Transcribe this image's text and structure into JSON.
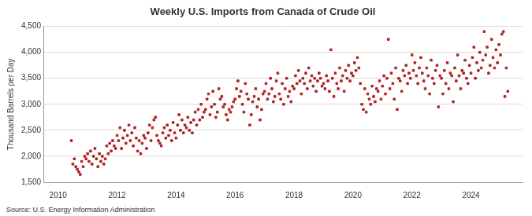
{
  "chart_data": {
    "type": "scatter",
    "title": "Weekly U.S. Imports from Canada of Crude Oil",
    "y_label": "Thousand Barrels per Day",
    "source": "Source: U.S. Energy Information Administration",
    "color": "#b22222",
    "marker": "square",
    "grid": true,
    "xlim": [
      2009.5,
      2025.75
    ],
    "xticks": [
      2010,
      2012,
      2014,
      2016,
      2018,
      2020,
      2022,
      2024
    ],
    "ylim": [
      1500,
      4500
    ],
    "yticks": [
      {
        "value": 1500,
        "label": "1,500"
      },
      {
        "value": 2000,
        "label": "2,000"
      },
      {
        "value": 2500,
        "label": "2,500"
      },
      {
        "value": 3000,
        "label": "3,000"
      },
      {
        "value": 3500,
        "label": "3,500"
      },
      {
        "value": 4000,
        "label": "4,000"
      },
      {
        "value": 4500,
        "label": "4,500"
      }
    ],
    "x": [
      2010.45,
      2010.5,
      2010.55,
      2010.6,
      2010.65,
      2010.7,
      2010.75,
      2010.8,
      2010.85,
      2010.9,
      2010.95,
      2011.0,
      2011.05,
      2011.1,
      2011.15,
      2011.2,
      2011.25,
      2011.3,
      2011.35,
      2011.4,
      2011.45,
      2011.5,
      2011.55,
      2011.6,
      2011.65,
      2011.7,
      2011.75,
      2011.8,
      2011.85,
      2011.9,
      2011.95,
      2012.0,
      2012.05,
      2012.1,
      2012.15,
      2012.2,
      2012.25,
      2012.3,
      2012.35,
      2012.4,
      2012.45,
      2012.5,
      2012.55,
      2012.6,
      2012.65,
      2012.7,
      2012.75,
      2012.8,
      2012.85,
      2012.9,
      2012.95,
      2013.0,
      2013.05,
      2013.1,
      2013.15,
      2013.2,
      2013.25,
      2013.3,
      2013.35,
      2013.4,
      2013.45,
      2013.5,
      2013.55,
      2013.6,
      2013.65,
      2013.7,
      2013.75,
      2013.8,
      2013.85,
      2013.9,
      2013.95,
      2014.0,
      2014.05,
      2014.1,
      2014.15,
      2014.2,
      2014.25,
      2014.3,
      2014.35,
      2014.4,
      2014.45,
      2014.5,
      2014.55,
      2014.6,
      2014.65,
      2014.7,
      2014.75,
      2014.8,
      2014.85,
      2014.9,
      2014.95,
      2015.0,
      2015.05,
      2015.1,
      2015.15,
      2015.2,
      2015.25,
      2015.3,
      2015.35,
      2015.4,
      2015.45,
      2015.5,
      2015.55,
      2015.6,
      2015.65,
      2015.7,
      2015.75,
      2015.8,
      2015.85,
      2015.9,
      2015.95,
      2016.0,
      2016.05,
      2016.1,
      2016.15,
      2016.2,
      2016.25,
      2016.3,
      2016.35,
      2016.4,
      2016.45,
      2016.5,
      2016.55,
      2016.6,
      2016.65,
      2016.7,
      2016.75,
      2016.8,
      2016.85,
      2016.9,
      2016.95,
      2017.0,
      2017.05,
      2017.1,
      2017.15,
      2017.2,
      2017.25,
      2017.3,
      2017.35,
      2017.4,
      2017.45,
      2017.5,
      2017.55,
      2017.6,
      2017.65,
      2017.7,
      2017.75,
      2017.8,
      2017.85,
      2017.9,
      2017.95,
      2018.0,
      2018.05,
      2018.1,
      2018.15,
      2018.2,
      2018.25,
      2018.3,
      2018.35,
      2018.4,
      2018.45,
      2018.5,
      2018.55,
      2018.6,
      2018.65,
      2018.7,
      2018.75,
      2018.8,
      2018.85,
      2018.9,
      2018.95,
      2019.0,
      2019.05,
      2019.1,
      2019.15,
      2019.2,
      2019.25,
      2019.3,
      2019.35,
      2019.4,
      2019.45,
      2019.5,
      2019.55,
      2019.6,
      2019.65,
      2019.7,
      2019.75,
      2019.8,
      2019.85,
      2019.9,
      2019.95,
      2020.0,
      2020.05,
      2020.1,
      2020.15,
      2020.2,
      2020.25,
      2020.3,
      2020.35,
      2020.4,
      2020.45,
      2020.5,
      2020.55,
      2020.6,
      2020.65,
      2020.7,
      2020.75,
      2020.8,
      2020.85,
      2020.9,
      2020.95,
      2021.0,
      2021.05,
      2021.1,
      2021.15,
      2021.2,
      2021.25,
      2021.3,
      2021.35,
      2021.4,
      2021.45,
      2021.5,
      2021.55,
      2021.6,
      2021.65,
      2021.7,
      2021.75,
      2021.8,
      2021.85,
      2021.9,
      2021.95,
      2022.0,
      2022.05,
      2022.1,
      2022.15,
      2022.2,
      2022.25,
      2022.3,
      2022.35,
      2022.4,
      2022.45,
      2022.5,
      2022.55,
      2022.6,
      2022.65,
      2022.7,
      2022.75,
      2022.8,
      2022.85,
      2022.9,
      2022.95,
      2023.0,
      2023.05,
      2023.1,
      2023.15,
      2023.2,
      2023.25,
      2023.3,
      2023.35,
      2023.4,
      2023.45,
      2023.5,
      2023.55,
      2023.6,
      2023.65,
      2023.7,
      2023.75,
      2023.8,
      2023.85,
      2023.9,
      2023.95,
      2024.0,
      2024.05,
      2024.1,
      2024.15,
      2024.2,
      2024.25,
      2024.3,
      2024.35,
      2024.4,
      2024.45,
      2024.5,
      2024.55,
      2024.6,
      2024.65,
      2024.7,
      2024.75,
      2024.8,
      2024.85,
      2024.9,
      2024.95,
      2025.0,
      2025.05,
      2025.1,
      2025.15,
      2025.2,
      2025.25
    ],
    "values": [
      2300,
      1850,
      1950,
      1800,
      1750,
      1700,
      1650,
      1900,
      1800,
      2000,
      1950,
      2050,
      1900,
      2100,
      1850,
      2000,
      2150,
      1950,
      1800,
      2050,
      1900,
      2000,
      1850,
      1950,
      2200,
      2050,
      2250,
      2100,
      2300,
      2200,
      2150,
      2400,
      2300,
      2550,
      2150,
      2350,
      2500,
      2250,
      2400,
      2600,
      2300,
      2450,
      2200,
      2550,
      2350,
      2100,
      2300,
      2050,
      2250,
      2400,
      2350,
      2150,
      2450,
      2600,
      2300,
      2550,
      2700,
      2750,
      2400,
      2300,
      2250,
      2200,
      2450,
      2550,
      2350,
      2600,
      2400,
      2500,
      2300,
      2650,
      2450,
      2350,
      2600,
      2800,
      2500,
      2700,
      2450,
      2600,
      2550,
      2750,
      2500,
      2650,
      2450,
      2700,
      2850,
      2600,
      2900,
      2700,
      3000,
      2750,
      2850,
      2900,
      3100,
      3200,
      2800,
      2950,
      3250,
      3000,
      2750,
      2850,
      3300,
      3100,
      3150,
      2950,
      3000,
      2800,
      2700,
      2900,
      2850,
      2950,
      3050,
      3100,
      3300,
      3450,
      3150,
      3250,
      3000,
      2850,
      3400,
      3200,
      3100,
      2600,
      2800,
      3050,
      3150,
      3300,
      2950,
      3100,
      2700,
      2900,
      3200,
      3250,
      3400,
      3100,
      3200,
      3500,
      3300,
      3050,
      3150,
      3450,
      3600,
      3200,
      3100,
      3400,
      3000,
      3300,
      3500,
      3150,
      3250,
      3050,
      3350,
      3300,
      3550,
      3400,
      3650,
      3450,
      3200,
      3500,
      3400,
      3600,
      3300,
      3700,
      3450,
      3550,
      3350,
      3500,
      3250,
      3450,
      3600,
      3500,
      3350,
      3400,
      3300,
      3550,
      3450,
      3250,
      4050,
      3500,
      3150,
      3600,
      3400,
      3300,
      3700,
      3450,
      3550,
      3250,
      3650,
      3500,
      3750,
      3450,
      3600,
      3550,
      3800,
      3650,
      3900,
      3700,
      3400,
      3000,
      2900,
      3300,
      2850,
      3200,
      3100,
      3000,
      3350,
      3150,
      3050,
      3300,
      3250,
      3450,
      3100,
      3350,
      3550,
      3200,
      3500,
      4250,
      3300,
      3600,
      3400,
      3100,
      3700,
      2900,
      3500,
      3450,
      3250,
      3650,
      3550,
      3750,
      3400,
      3600,
      3500,
      3950,
      3650,
      3800,
      3550,
      3400,
      3700,
      3900,
      3600,
      3450,
      3300,
      3700,
      3550,
      3200,
      3850,
      3500,
      3400,
      3650,
      3750,
      2950,
      3550,
      3500,
      3200,
      3650,
      3400,
      3800,
      3300,
      3600,
      3550,
      3050,
      3700,
      3450,
      3950,
      3550,
      3300,
      3650,
      3600,
      3850,
      3500,
      3400,
      3750,
      3600,
      3900,
      4100,
      3500,
      3800,
      3650,
      4000,
      3700,
      3850,
      4400,
      3950,
      4100,
      3600,
      3750,
      4250,
      3900,
      3700,
      4050,
      3800,
      4150,
      3950,
      4350,
      4400,
      3150,
      3700,
      3250
    ]
  }
}
